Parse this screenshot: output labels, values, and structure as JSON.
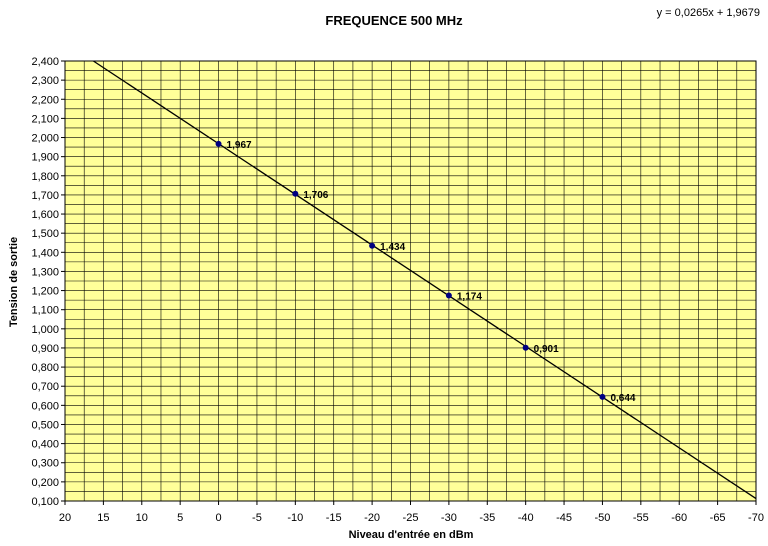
{
  "chart_data": {
    "type": "scatter",
    "title": "FREQUENCE 500 MHz",
    "equation": "y = 0,0265x + 1,9679",
    "xlabel": "Niveau d'entrée en dBm",
    "ylabel": "Tension de sortie",
    "xlim": [
      20,
      -70
    ],
    "ylim": [
      0.1,
      2.4
    ],
    "x_ticks": [
      "20",
      "15",
      "10",
      "5",
      "0",
      "-5",
      "-10",
      "-15",
      "-20",
      "-25",
      "-30",
      "-35",
      "-40",
      "-45",
      "-50",
      "-55",
      "-60",
      "-65",
      "-70"
    ],
    "y_ticks": [
      "0,100",
      "0,200",
      "0,300",
      "0,400",
      "0,500",
      "0,600",
      "0,700",
      "0,800",
      "0,900",
      "1,000",
      "1,100",
      "1,200",
      "1,300",
      "1,400",
      "1,500",
      "1,600",
      "1,700",
      "1,800",
      "1,900",
      "2,000",
      "2,100",
      "2,200",
      "2,300",
      "2,400"
    ],
    "grid": true,
    "background_color": "#ffff99",
    "line_color": "#000000",
    "marker_color": "#000080",
    "trendline": {
      "slope": 0.0265,
      "intercept": 1.9679
    },
    "series": [
      {
        "x": [
          0,
          -10,
          -20,
          -30,
          -40,
          -50
        ],
        "y": [
          1.967,
          1.706,
          1.434,
          1.174,
          0.901,
          0.644
        ],
        "labels": [
          "1,967",
          "1,706",
          "1,434",
          "1,174",
          "0,901",
          "0,644"
        ]
      }
    ]
  }
}
